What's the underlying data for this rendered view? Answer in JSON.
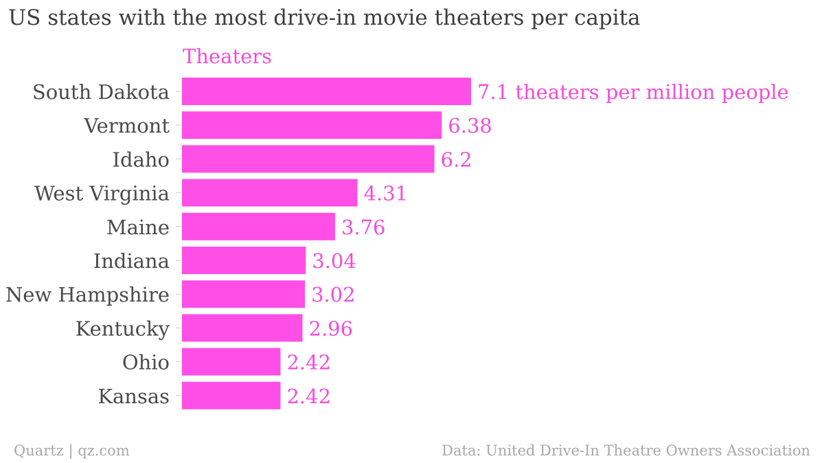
{
  "chart_data": {
    "type": "bar",
    "orientation": "horizontal",
    "title": "US states with the most drive-in movie theaters per capita",
    "categories": [
      "South Dakota",
      "Vermont",
      "Idaho",
      "West Virginia",
      "Maine",
      "Indiana",
      "New Hampshire",
      "Kentucky",
      "Ohio",
      "Kansas"
    ],
    "series": [
      {
        "name": "Theaters",
        "values": [
          7.1,
          6.38,
          6.2,
          4.31,
          3.76,
          3.04,
          3.02,
          2.96,
          2.42,
          2.42
        ],
        "data_labels": [
          "7.1 theaters per million people",
          "6.38",
          "6.2",
          "4.31",
          "3.76",
          "3.04",
          "3.02",
          "2.96",
          "2.42",
          "2.42"
        ]
      }
    ],
    "xlim": [
      0,
      7.1
    ],
    "grid": false,
    "legend": "top-left",
    "colors": {
      "bar": "#ff4fe6",
      "label": "#f24dd9",
      "category_text": "#4a4a4a",
      "tick": "#cccccc"
    }
  },
  "footer": {
    "source_left": "Quartz | qz.com",
    "source_right": "Data: United Drive-In Theatre Owners Association"
  }
}
